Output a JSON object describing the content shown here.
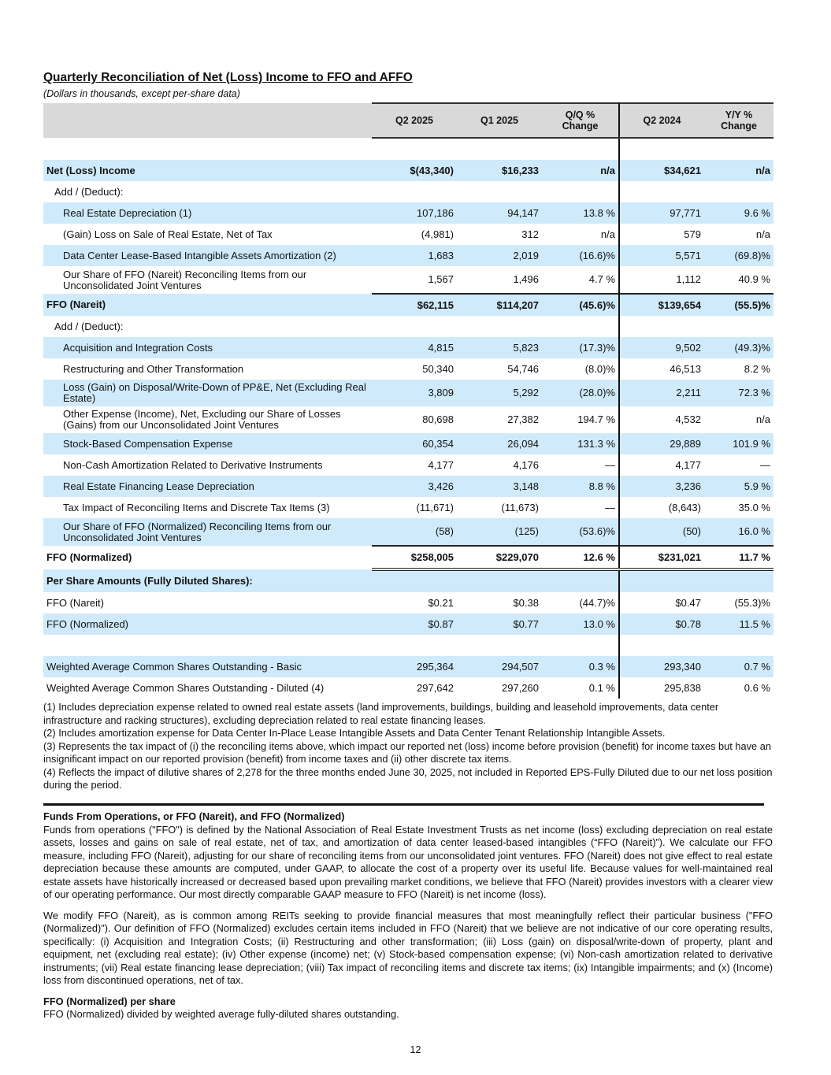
{
  "header": {
    "title": "Quarterly Reconciliation of Net (Loss) Income to FFO and AFFO",
    "subtitle": "(Dollars in thousands, except per-share data)"
  },
  "table": {
    "columns": [
      "Q2 2025",
      "Q1 2025",
      "Q/Q % Change",
      "Q2 2024",
      "Y/Y % Change"
    ],
    "rows": [
      {
        "label": "Net (Loss) Income",
        "cells": [
          "$(43,340)",
          "$16,233",
          "n/a",
          "$34,621",
          "n/a"
        ]
      },
      {
        "label": "Add / (Deduct):"
      },
      {
        "label": "Real Estate Depreciation (1)",
        "cells": [
          "107,186",
          "94,147",
          "13.8 %",
          "97,771",
          "9.6 %"
        ]
      },
      {
        "label": "(Gain) Loss on Sale of Real Estate, Net of Tax",
        "cells": [
          "(4,981)",
          "312",
          "n/a",
          "579",
          "n/a"
        ]
      },
      {
        "label": "Data Center Lease-Based Intangible Assets Amortization (2)",
        "cells": [
          "1,683",
          "2,019",
          "(16.6)%",
          "5,571",
          "(69.8)%"
        ]
      },
      {
        "label": "Our Share of FFO (Nareit) Reconciling Items from our Unconsolidated Joint Ventures",
        "cells": [
          "1,567",
          "1,496",
          "4.7 %",
          "1,112",
          "40.9 %"
        ]
      },
      {
        "label": "FFO (Nareit)",
        "cells": [
          "$62,115",
          "$114,207",
          "(45.6)%",
          "$139,654",
          "(55.5)%"
        ]
      },
      {
        "label": "Add / (Deduct):"
      },
      {
        "label": "Acquisition and Integration Costs",
        "cells": [
          "4,815",
          "5,823",
          "(17.3)%",
          "9,502",
          "(49.3)%"
        ]
      },
      {
        "label": "Restructuring and Other Transformation",
        "cells": [
          "50,340",
          "54,746",
          "(8.0)%",
          "46,513",
          "8.2 %"
        ]
      },
      {
        "label": "Loss (Gain) on Disposal/Write-Down of PP&E, Net (Excluding Real Estate)",
        "cells": [
          "3,809",
          "5,292",
          "(28.0)%",
          "2,211",
          "72.3 %"
        ]
      },
      {
        "label": "Other Expense (Income), Net, Excluding our Share of Losses (Gains) from our Unconsolidated Joint Ventures",
        "cells": [
          "80,698",
          "27,382",
          "194.7 %",
          "4,532",
          "n/a"
        ]
      },
      {
        "label": "Stock-Based Compensation Expense",
        "cells": [
          "60,354",
          "26,094",
          "131.3 %",
          "29,889",
          "101.9 %"
        ]
      },
      {
        "label": "Non-Cash Amortization Related to Derivative Instruments",
        "cells": [
          "4,177",
          "4,176",
          "—",
          "4,177",
          "—"
        ]
      },
      {
        "label": "Real Estate Financing Lease Depreciation",
        "cells": [
          "3,426",
          "3,148",
          "8.8 %",
          "3,236",
          "5.9 %"
        ]
      },
      {
        "label": "Tax Impact of Reconciling Items and Discrete Tax Items (3)",
        "cells": [
          "(11,671)",
          "(11,673)",
          "—",
          "(8,643)",
          "35.0 %"
        ]
      },
      {
        "label": "Our Share of FFO (Normalized) Reconciling Items from our Unconsolidated Joint Ventures",
        "cells": [
          "(58)",
          "(125)",
          "(53.6)%",
          "(50)",
          "16.0 %"
        ]
      },
      {
        "label": "FFO (Normalized)",
        "cells": [
          "$258,005",
          "$229,070",
          "12.6 %",
          "$231,021",
          "11.7 %"
        ]
      },
      {
        "label": "Per Share Amounts (Fully Diluted Shares):"
      },
      {
        "label": "FFO (Nareit)",
        "cells": [
          "$0.21",
          "$0.38",
          "(44.7)%",
          "$0.47",
          "(55.3)%"
        ]
      },
      {
        "label": "FFO (Normalized)",
        "cells": [
          "$0.87",
          "$0.77",
          "13.0 %",
          "$0.78",
          "11.5 %"
        ]
      },
      {
        "label": "Weighted Average Common Shares Outstanding - Basic",
        "cells": [
          "295,364",
          "294,507",
          "0.3 %",
          "293,340",
          "0.7 %"
        ]
      },
      {
        "label": "Weighted Average Common Shares Outstanding - Diluted (4)",
        "cells": [
          "297,642",
          "297,260",
          "0.1 %",
          "295,838",
          "0.6 %"
        ]
      }
    ]
  },
  "footnotes": [
    "(1) Includes depreciation expense related to owned real estate assets (land improvements, buildings, building and leasehold improvements, data center infrastructure and racking structures), excluding depreciation related to real estate financing leases.",
    "(2) Includes amortization expense for Data Center In-Place Lease Intangible Assets and Data Center Tenant Relationship Intangible Assets.",
    "(3) Represents the tax impact of (i) the reconciling items above, which impact our reported net (loss) income before provision (benefit) for income taxes but have an insignificant impact on our reported provision (benefit) from income taxes and (ii) other discrete tax items.",
    "(4) Reflects the impact of dilutive shares of 2,278 for the three months ended June 30, 2025, not included in Reported EPS-Fully Diluted due to our net loss position during the period."
  ],
  "sections": [
    {
      "heading": "Funds From Operations, or FFO (Nareit), and FFO (Normalized)",
      "paragraphs": [
        "Funds from operations (\"FFO\") is defined by the National Association of Real Estate Investment Trusts as net income (loss) excluding depreciation on real estate assets, losses and gains on sale of real estate, net of tax, and amortization of data center leased-based intangibles (“FFO (Nareit)”). We calculate our FFO measure, including FFO (Nareit), adjusting for our share of reconciling items from our unconsolidated joint ventures. FFO (Nareit) does not give effect to real estate depreciation because these amounts are computed, under GAAP, to allocate the cost of a property over its useful life. Because values for well-maintained real estate assets have historically increased or decreased based upon prevailing market conditions, we believe that FFO (Nareit) provides investors with a clearer view of our operating performance. Our most directly comparable GAAP measure to FFO (Nareit) is net income (loss).",
        "We modify FFO (Nareit), as is common among REITs seeking to provide financial measures that most meaningfully reflect their particular business (\"FFO (Normalized)\"). Our definition of FFO (Normalized) excludes certain items included in FFO (Nareit) that we believe are not indicative of our core operating results, specifically: (i) Acquisition and Integration Costs; (ii) Restructuring and other transformation; (iii) Loss (gain) on disposal/write-down of property, plant and equipment, net (excluding real estate); (iv) Other expense (income) net; (v) Stock-based compensation expense; (vi) Non-cash amortization related to derivative instruments; (vii) Real estate financing lease depreciation; (viii) Tax impact of reconciling items and discrete tax items; (ix) Intangible impairments; and (x) (Income) loss from discontinued operations, net of tax."
      ]
    },
    {
      "heading": "FFO (Normalized) per share",
      "paragraphs": [
        "FFO (Normalized) divided by weighted average fully-diluted shares outstanding."
      ]
    }
  ],
  "footer": {
    "page_number": "12"
  }
}
